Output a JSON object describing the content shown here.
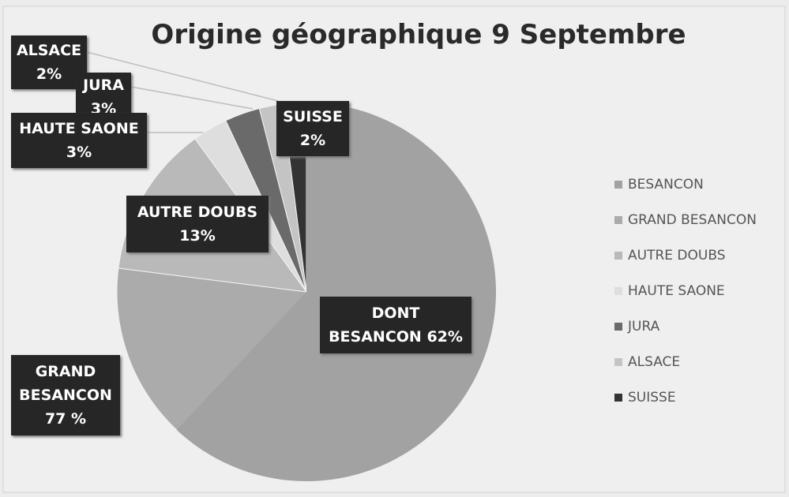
{
  "chart_data": {
    "type": "pie",
    "title": "Origine géographique 9 Septembre",
    "categories": [
      "BESANCON",
      "GRAND BESANCON",
      "AUTRE DOUBS",
      "HAUTE SAONE",
      "JURA",
      "ALSACE",
      "SUISSE"
    ],
    "values": [
      62,
      77,
      13,
      3,
      3,
      2,
      2
    ],
    "value_labels": [
      "DONT BESANCON 62%",
      "GRAND BESANCON 77 %",
      "AUTRE DOUBS 13%",
      "HAUTE SAONE 3%",
      "JURA 3%",
      "ALSACE 2%",
      "SUISSE 2%"
    ],
    "colors": [
      "#a2a2a2",
      "#ababab",
      "#b9b9b9",
      "#dedede",
      "#6a6a6a",
      "#c4c4c4",
      "#333333"
    ],
    "legend": "right"
  }
}
